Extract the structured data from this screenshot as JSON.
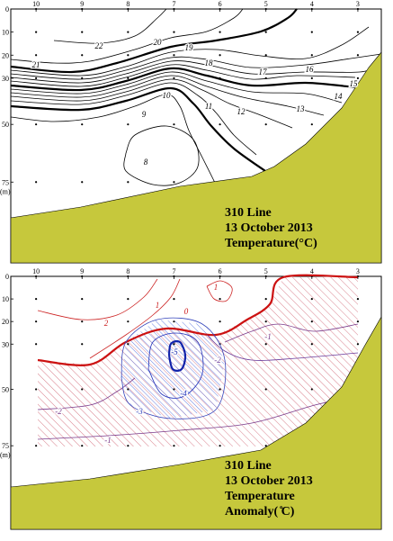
{
  "chart_data": [
    {
      "type": "contour",
      "title_lines": [
        "310 Line",
        "13 October 2013",
        "Temperature(°C)"
      ],
      "xticks": [
        10,
        9,
        8,
        7,
        6,
        5,
        4,
        3
      ],
      "xlim": [
        10.55,
        2.49
      ],
      "yticks": [
        0,
        10,
        20,
        30,
        50,
        75
      ],
      "ylim": [
        0,
        110
      ],
      "y_inverted": true,
      "y_unit_label": "(m)",
      "contours": [
        {
          "level": 22,
          "color": "#000000"
        },
        {
          "level": 21,
          "color": "#000000"
        },
        {
          "level": 20,
          "color": "#000000"
        },
        {
          "level": 19,
          "color": "#000000"
        },
        {
          "level": 18,
          "color": "#000000"
        },
        {
          "level": 17,
          "color": "#000000"
        },
        {
          "level": 16,
          "color": "#000000"
        },
        {
          "level": 15,
          "color": "#000000"
        },
        {
          "level": 14,
          "color": "#000000"
        },
        {
          "level": 13,
          "color": "#000000"
        },
        {
          "level": 12,
          "color": "#000000"
        },
        {
          "level": 11,
          "color": "#000000"
        },
        {
          "level": 10,
          "color": "#000000"
        },
        {
          "level": 9,
          "color": "#000000"
        },
        {
          "level": 8,
          "color": "#000000"
        }
      ],
      "terrain_color": "#c6c83c"
    },
    {
      "type": "contour",
      "title_lines": [
        "310 Line",
        "13 October 2013",
        "Temperature",
        "Anomaly( ̊C)"
      ],
      "xticks": [
        10,
        9,
        8,
        7,
        6,
        5,
        4,
        3
      ],
      "xlim": [
        10.55,
        2.49
      ],
      "yticks": [
        0,
        10,
        20,
        30,
        50,
        75
      ],
      "ylim": [
        0,
        112
      ],
      "y_inverted": true,
      "y_unit_label": "(m)",
      "contours": [
        {
          "level": 2,
          "color": "#cc2222"
        },
        {
          "level": 1,
          "color": "#cc2222"
        },
        {
          "level": 1,
          "color": "#cc2222"
        },
        {
          "level": 0,
          "color": "#cc1111"
        },
        {
          "level": -1,
          "color": "#7a3a8a"
        },
        {
          "level": -1,
          "color": "#7a3a8a"
        },
        {
          "level": -2,
          "color": "#7a3a8a"
        },
        {
          "level": -2,
          "color": "#6a3a9a"
        },
        {
          "level": -3,
          "color": "#3344bb"
        },
        {
          "level": -4,
          "color": "#2233bb"
        },
        {
          "level": -5,
          "color": "#1122aa"
        }
      ],
      "terrain_color": "#c6c83c"
    }
  ]
}
